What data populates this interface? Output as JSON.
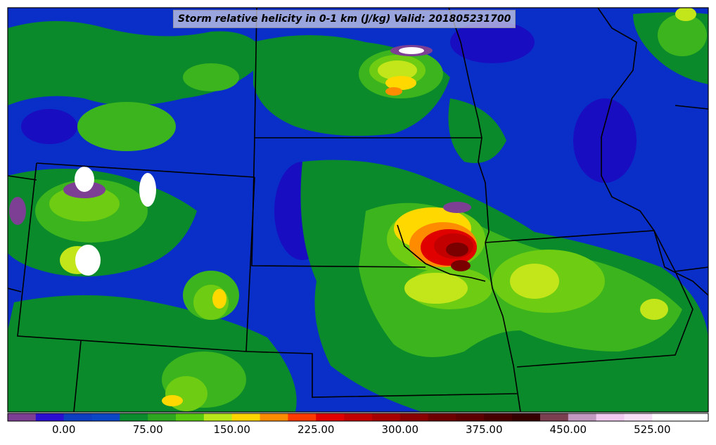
{
  "title": "Storm relative helicity in 0-1 km (J/kg) Valid: 201805231700",
  "colorbar": {
    "min": -50,
    "max": 575,
    "step": 25,
    "colors": [
      "#7c3f94",
      "#2a0fd0",
      "#0e3ec0",
      "#0b47c4",
      "#0b8a2e",
      "#2ea61f",
      "#58c810",
      "#b7e61b",
      "#ffd400",
      "#ff8c00",
      "#ff3a00",
      "#e10000",
      "#c30000",
      "#a60000",
      "#8a0000",
      "#6e0000",
      "#5c0000",
      "#470000",
      "#340000",
      "#7a4050",
      "#c098c0",
      "#f0c8f0",
      "#f7e0f7",
      "#ffffff",
      "#ffffff"
    ],
    "tick_values": [
      "0.00",
      "75.00",
      "150.00",
      "225.00",
      "300.00",
      "375.00",
      "450.00",
      "525.00"
    ]
  },
  "map": {
    "colors": {
      "blue": "#0a2fc8",
      "blue_dark": "#1a0ac0",
      "green_dark": "#0a8a2a",
      "green": "#3cb41e",
      "green_light": "#6ecc12",
      "yellow_green": "#c2e61a",
      "yellow": "#ffd800",
      "orange": "#ff8c00",
      "red": "#e00000",
      "dark_red": "#7a0000",
      "purple": "#7c3f94",
      "white": "#ffffff",
      "border": "#000000"
    }
  }
}
